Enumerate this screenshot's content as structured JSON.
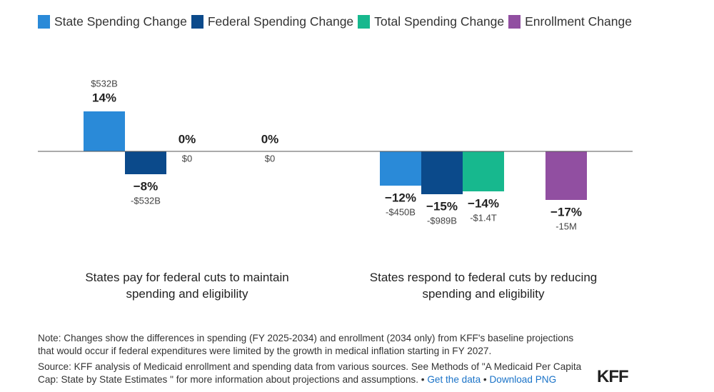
{
  "chart_data": {
    "type": "bar",
    "categories": [
      "States pay for federal cuts to maintain spending and eligibility",
      "States respond to federal cuts by reducing spending and eligibility"
    ],
    "series": [
      {
        "name": "State Spending Change",
        "color": "#2a8ad8",
        "values": [
          14,
          -12
        ],
        "value_labels": [
          "14%",
          "−12%"
        ],
        "amount_labels": [
          "$532B",
          "-$450B"
        ]
      },
      {
        "name": "Federal Spending Change",
        "color": "#0b4a8b",
        "values": [
          -8,
          -15
        ],
        "value_labels": [
          "−8%",
          "−15%"
        ],
        "amount_labels": [
          "-$532B",
          "-$989B"
        ]
      },
      {
        "name": "Total Spending Change",
        "color": "#17b88e",
        "values": [
          0,
          -14
        ],
        "value_labels": [
          "0%",
          "−14%"
        ],
        "amount_labels": [
          "$0",
          "-$1.4T"
        ]
      },
      {
        "name": "Enrollment Change",
        "color": "#914fa1",
        "values": [
          0,
          -17
        ],
        "value_labels": [
          "0%",
          "−17%"
        ],
        "amount_labels": [
          "$0",
          "-15M"
        ]
      }
    ],
    "legend": "top-left"
  },
  "footer": {
    "note": "Note: Changes show the differences in spending (FY 2025-2034) and enrollment (2034 only) from KFF's baseline projections that would occur if federal expenditures were limited by the growth in medical inflation starting in FY 2027.",
    "source": "Source: KFF analysis of Medicaid enrollment and spending data from various sources. See Methods of \"A Medicaid Per Capita Cap: State by State Estimates \" for more information about projections and assumptions.",
    "separator": "•",
    "links": [
      "Get the data",
      "Download PNG"
    ],
    "logo": "KFF"
  }
}
